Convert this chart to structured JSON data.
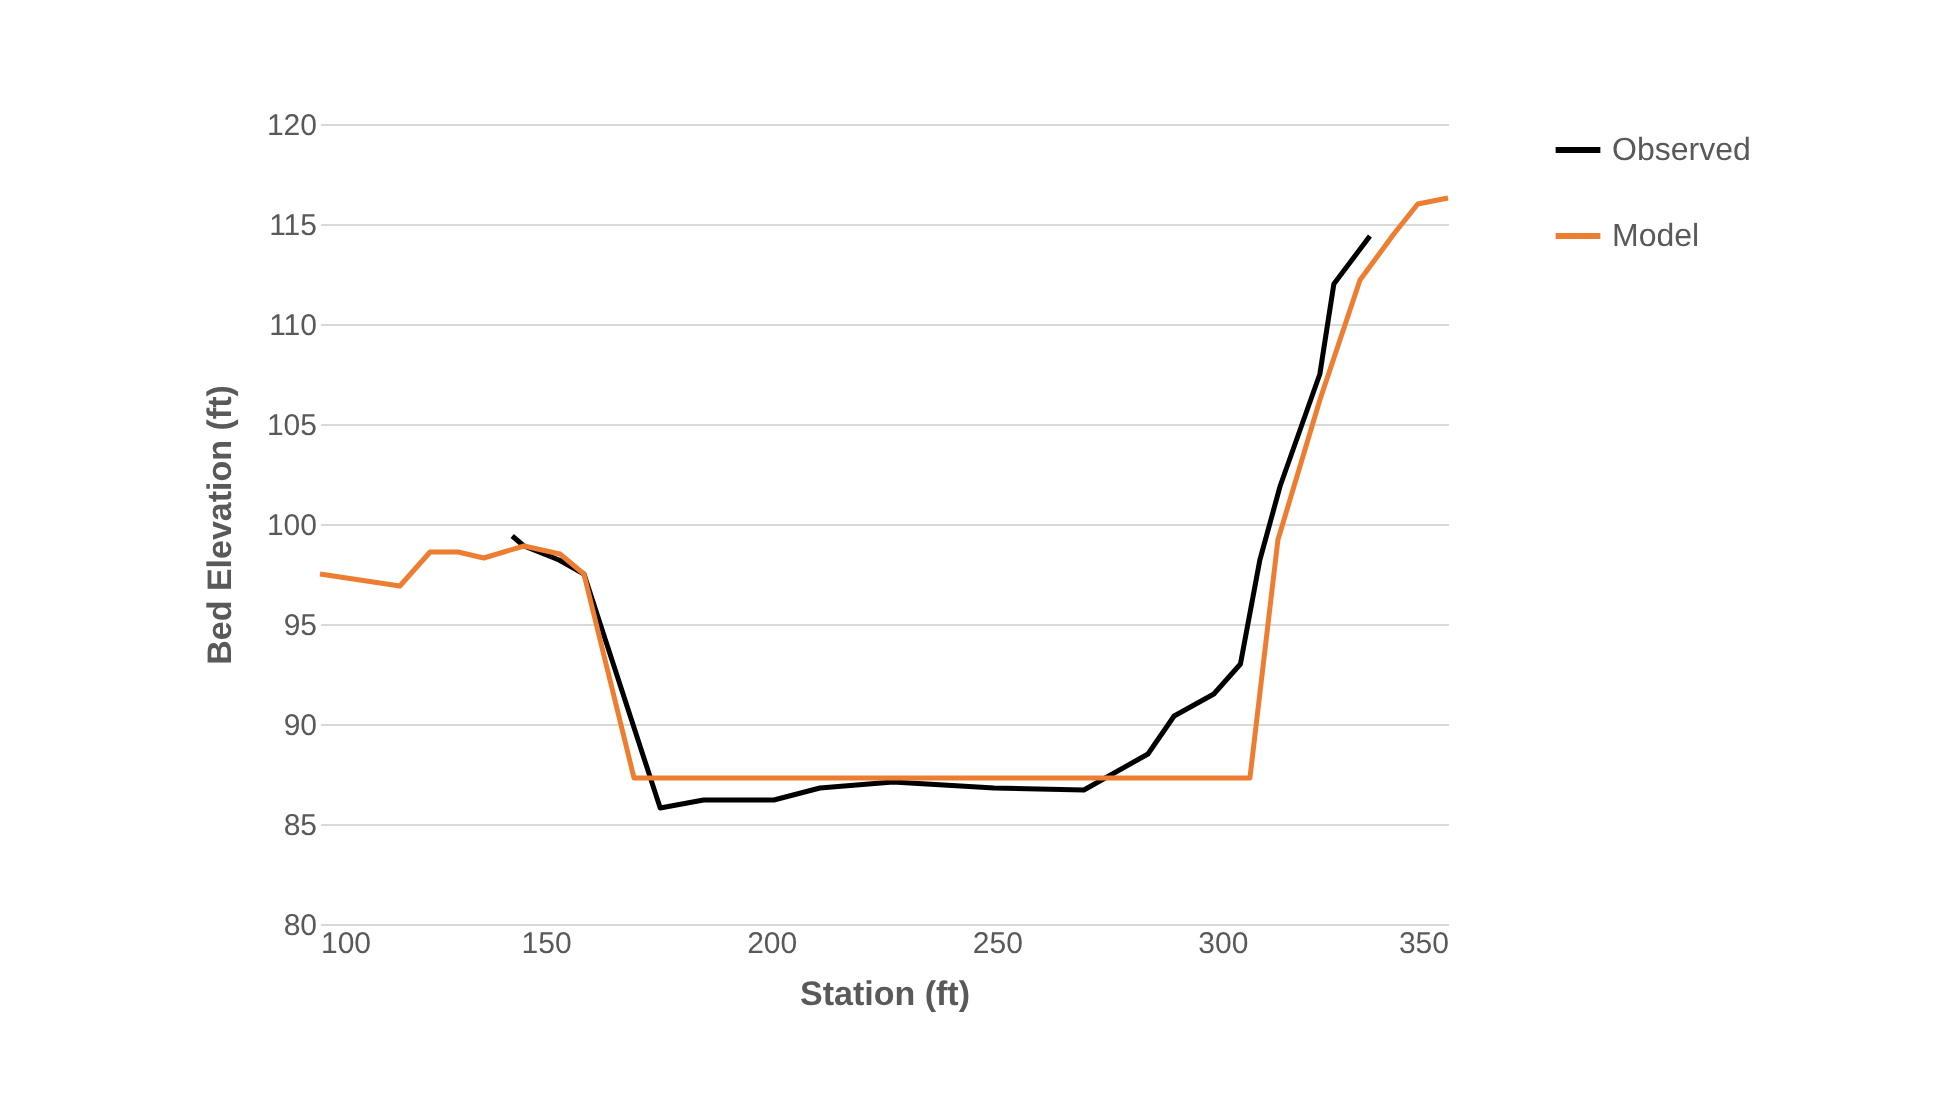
{
  "chart_data": {
    "type": "line",
    "xlabel": "Station (ft)",
    "ylabel": "Bed Elevation (ft)",
    "xlim": [
      100,
      350
    ],
    "xticks": [
      100,
      150,
      200,
      250,
      300,
      350
    ],
    "ylim": [
      80,
      120
    ],
    "yticks": [
      80,
      85,
      90,
      95,
      100,
      105,
      110,
      115,
      120
    ],
    "grid": "y",
    "legend": "right",
    "marker": "none",
    "line_style": "solid",
    "series": [
      {
        "name": "Observed",
        "color": "#000000",
        "x": [
          142.6,
          145.2,
          153,
          158.5,
          175.4,
          185,
          200.6,
          210.8,
          227,
          249.4,
          269.3,
          283.5,
          289.3,
          298.1,
          304,
          308.3,
          312.8,
          321.6,
          324.7,
          332.7
        ],
        "values": [
          99.4,
          98.9,
          98.2,
          97.5,
          85.8,
          86.2,
          86.2,
          86.8,
          87.1,
          86.8,
          86.7,
          88.5,
          90.4,
          91.5,
          93,
          98.2,
          101.9,
          107.5,
          112,
          114.4
        ]
      },
      {
        "name": "Model",
        "color": "#ed7d31",
        "x": [
          100,
          117.7,
          124.4,
          130.6,
          136.3,
          145.2,
          153.2,
          158.5,
          169.6,
          306.1,
          312.3,
          321.6,
          330.5,
          338,
          343.3,
          350
        ],
        "values": [
          97.5,
          96.9,
          98.6,
          98.6,
          98.3,
          98.9,
          98.5,
          97.5,
          87.3,
          87.3,
          99.2,
          106.2,
          112.2,
          114.5,
          116,
          116.3
        ]
      }
    ]
  }
}
